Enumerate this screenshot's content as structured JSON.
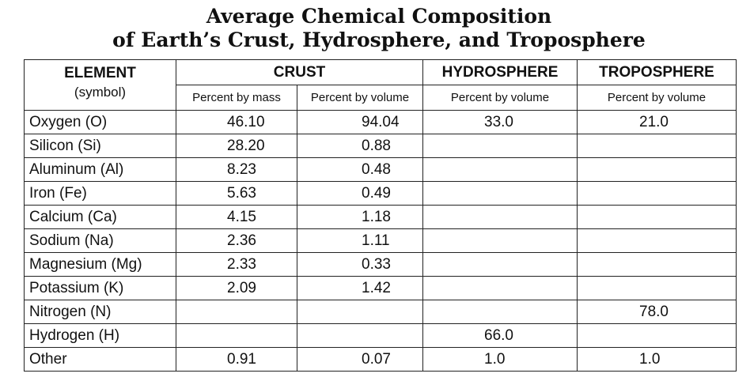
{
  "title": {
    "line1": "Average Chemical Composition",
    "line2": "of Earth’s Crust, Hydrosphere, and Troposphere"
  },
  "headers": {
    "element": "ELEMENT",
    "element_sub": "(symbol)",
    "crust": "CRUST",
    "hydrosphere": "HYDROSPHERE",
    "troposphere": "TROPOSPHERE",
    "crust_mass": "Percent by mass",
    "crust_volume": "Percent by volume",
    "hydro_volume": "Percent by volume",
    "tropo_volume": "Percent by volume"
  },
  "rows": [
    {
      "element": "Oxygen (O)",
      "crust_mass": "46.10",
      "crust_volume": "94.04",
      "hydro_volume": "33.0",
      "tropo_volume": "21.0"
    },
    {
      "element": "Silicon (Si)",
      "crust_mass": "28.20",
      "crust_volume": "0.88",
      "hydro_volume": "",
      "tropo_volume": ""
    },
    {
      "element": "Aluminum (Al)",
      "crust_mass": "8.23",
      "crust_volume": "0.48",
      "hydro_volume": "",
      "tropo_volume": ""
    },
    {
      "element": "Iron (Fe)",
      "crust_mass": "5.63",
      "crust_volume": "0.49",
      "hydro_volume": "",
      "tropo_volume": ""
    },
    {
      "element": "Calcium (Ca)",
      "crust_mass": "4.15",
      "crust_volume": "1.18",
      "hydro_volume": "",
      "tropo_volume": ""
    },
    {
      "element": "Sodium (Na)",
      "crust_mass": "2.36",
      "crust_volume": "1.11",
      "hydro_volume": "",
      "tropo_volume": ""
    },
    {
      "element": "Magnesium (Mg)",
      "crust_mass": "2.33",
      "crust_volume": "0.33",
      "hydro_volume": "",
      "tropo_volume": ""
    },
    {
      "element": "Potassium (K)",
      "crust_mass": "2.09",
      "crust_volume": "1.42",
      "hydro_volume": "",
      "tropo_volume": ""
    },
    {
      "element": "Nitrogen (N)",
      "crust_mass": "",
      "crust_volume": "",
      "hydro_volume": "",
      "tropo_volume": "78.0"
    },
    {
      "element": "Hydrogen (H)",
      "crust_mass": "",
      "crust_volume": "",
      "hydro_volume": "66.0",
      "tropo_volume": ""
    },
    {
      "element": "Other",
      "crust_mass": "0.91",
      "crust_volume": "0.07",
      "hydro_volume": "1.0",
      "tropo_volume": "1.0"
    }
  ]
}
